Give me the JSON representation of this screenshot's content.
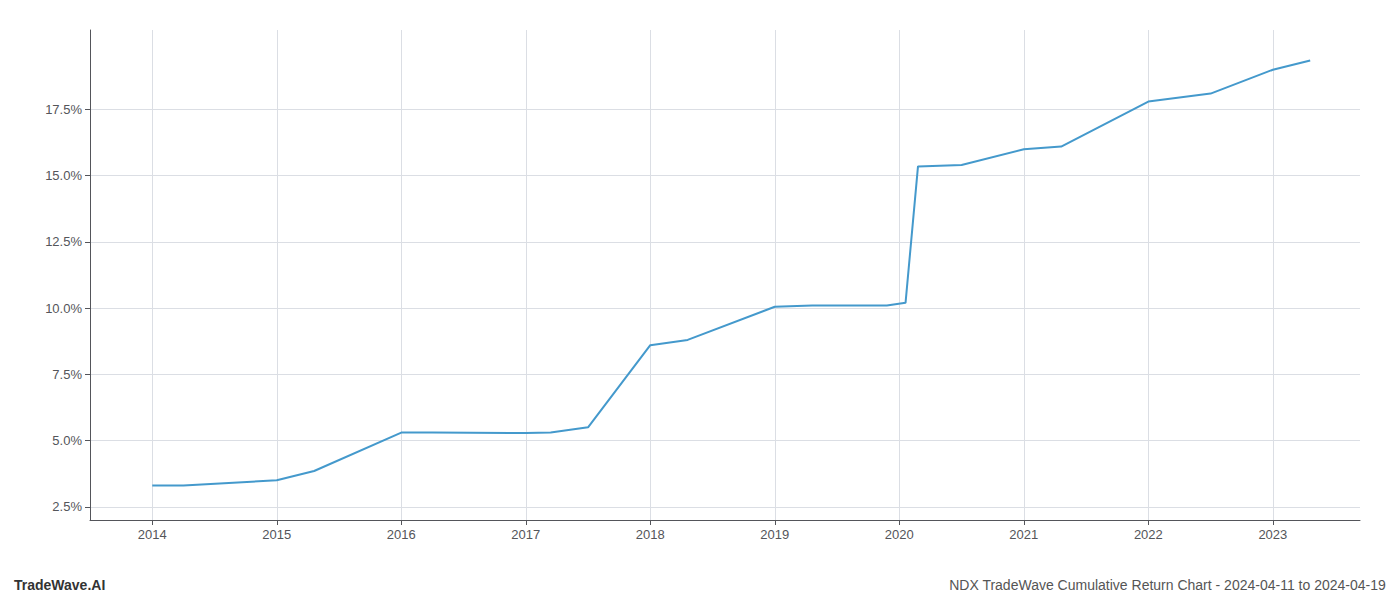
{
  "chart_data": {
    "type": "line",
    "x": [
      2014.0,
      2014.25,
      2015.0,
      2015.3,
      2016.0,
      2016.25,
      2017.0,
      2017.2,
      2017.5,
      2018.0,
      2018.3,
      2019.0,
      2019.3,
      2019.9,
      2020.05,
      2020.15,
      2020.5,
      2021.0,
      2021.3,
      2022.0,
      2022.5,
      2023.0,
      2023.3
    ],
    "values": [
      3.3,
      3.3,
      3.5,
      3.85,
      5.3,
      5.3,
      5.28,
      5.3,
      5.5,
      8.6,
      8.8,
      10.05,
      10.1,
      10.1,
      10.2,
      15.35,
      15.4,
      16.0,
      16.1,
      17.8,
      18.1,
      19.0,
      19.35
    ],
    "color": "#4499cc",
    "xlim": [
      2013.5,
      2023.7
    ],
    "ylim": [
      2.0,
      20.5
    ],
    "xticks": [
      2014,
      2015,
      2016,
      2017,
      2018,
      2019,
      2020,
      2021,
      2022,
      2023
    ],
    "yticks": [
      {
        "value": 2.5,
        "label": "2.5%"
      },
      {
        "value": 5.0,
        "label": "5.0%"
      },
      {
        "value": 7.5,
        "label": "7.5%"
      },
      {
        "value": 10.0,
        "label": "10.0%"
      },
      {
        "value": 12.5,
        "label": "12.5%"
      },
      {
        "value": 15.0,
        "label": "15.0%"
      },
      {
        "value": 17.5,
        "label": "17.5%"
      }
    ],
    "grid": true,
    "annotations": [
      "TradeWave.AI",
      "NDX TradeWave Cumulative Return Chart - 2024-04-11 to 2024-04-19"
    ]
  }
}
